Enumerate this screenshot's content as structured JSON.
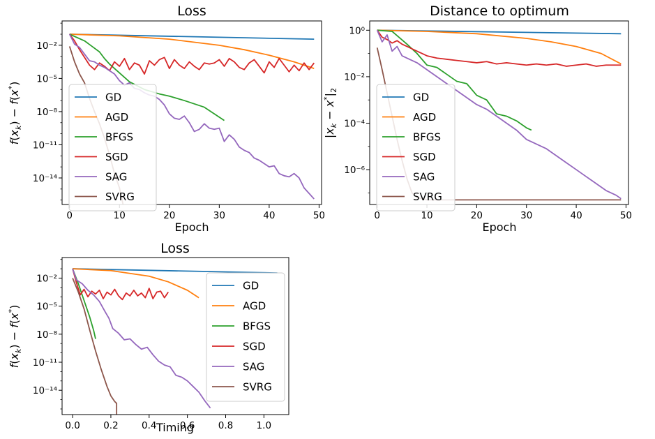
{
  "colors": {
    "GD": "#1f77b4",
    "AGD": "#ff7f0e",
    "BFGS": "#2ca02c",
    "SGD": "#d62728",
    "SAG": "#9467bd",
    "SVRG": "#8c564b"
  },
  "chart_data": [
    {
      "type": "line",
      "title": "Loss",
      "xlabel": "Epoch",
      "ylabel": "f(x_k) − f(x*)",
      "yscale": "log",
      "xlim": [
        -1.5,
        50.5
      ],
      "ylim_log10": [
        -16.4,
        0.2
      ],
      "xticks": [
        0,
        10,
        20,
        30,
        40,
        50
      ],
      "xtick_labels": [
        "0",
        "10",
        "20",
        "30",
        "40",
        "50"
      ],
      "yticks_log10": [
        -2,
        -5,
        -8,
        -11,
        -14
      ],
      "ytick_labels": [
        "10⁻²",
        "10⁻⁵",
        "10⁻⁸",
        "10⁻¹¹",
        "10⁻¹⁴"
      ],
      "legend_position": "lower-left",
      "series": [
        {
          "name": "GD",
          "x": [
            0,
            49
          ],
          "y_log10": [
            -1.0,
            -1.45
          ]
        },
        {
          "name": "AGD",
          "x": [
            0,
            10,
            20,
            30,
            35,
            40,
            45,
            49
          ],
          "y_log10": [
            -1.0,
            -1.15,
            -1.45,
            -2.0,
            -2.4,
            -2.9,
            -3.5,
            -4.1
          ]
        },
        {
          "name": "BFGS",
          "x": [
            0,
            3,
            6,
            7,
            8,
            10,
            12,
            15,
            18,
            20,
            23,
            27,
            30,
            31
          ],
          "y_log10": [
            -1.0,
            -1.6,
            -2.6,
            -3.2,
            -3.7,
            -4.5,
            -5.3,
            -6.0,
            -6.4,
            -6.6,
            -7.0,
            -7.6,
            -8.5,
            -8.8
          ]
        },
        {
          "name": "SGD",
          "x": [
            0,
            1,
            2,
            3,
            4,
            5,
            6,
            7,
            8,
            9,
            10,
            11,
            12,
            13,
            14,
            15,
            16,
            17,
            18,
            19,
            20,
            21,
            22,
            23,
            24,
            25,
            26,
            27,
            28,
            29,
            30,
            31,
            32,
            33,
            34,
            35,
            36,
            37,
            38,
            39,
            40,
            41,
            42,
            43,
            44,
            45,
            46,
            47,
            48,
            49
          ],
          "y_log10": [
            -1.0,
            -1.6,
            -2.4,
            -3.1,
            -3.8,
            -4.2,
            -3.6,
            -3.9,
            -4.3,
            -3.5,
            -3.9,
            -3.2,
            -4.2,
            -3.6,
            -3.8,
            -4.6,
            -3.4,
            -3.8,
            -3.3,
            -3.1,
            -4.1,
            -3.3,
            -3.8,
            -4.1,
            -3.5,
            -3.9,
            -4.2,
            -3.6,
            -3.7,
            -3.6,
            -3.3,
            -3.9,
            -3.2,
            -3.5,
            -4.0,
            -4.2,
            -3.6,
            -3.3,
            -3.9,
            -4.5,
            -3.5,
            -4.0,
            -3.2,
            -3.8,
            -4.4,
            -3.8,
            -4.3,
            -3.6,
            -4.2,
            -3.6
          ]
        },
        {
          "name": "SAG",
          "x": [
            0,
            1,
            2,
            3,
            4,
            5,
            6,
            7,
            8,
            9,
            10,
            11,
            12,
            13,
            14,
            15,
            16,
            17,
            18,
            19,
            20,
            21,
            22,
            23,
            24,
            25,
            26,
            27,
            28,
            29,
            30,
            31,
            32,
            33,
            34,
            35,
            36,
            37,
            38,
            39,
            40,
            41,
            42,
            43,
            44,
            45,
            46,
            47,
            48,
            49
          ],
          "y_log10": [
            -1.0,
            -1.9,
            -2.2,
            -2.8,
            -3.4,
            -3.5,
            -3.8,
            -4.0,
            -4.3,
            -4.6,
            -5.2,
            -5.6,
            -5.4,
            -5.9,
            -6.0,
            -6.3,
            -6.5,
            -6.6,
            -6.9,
            -7.4,
            -8.2,
            -8.6,
            -8.7,
            -8.4,
            -9.0,
            -9.8,
            -9.6,
            -9.1,
            -9.5,
            -9.6,
            -9.5,
            -10.7,
            -10.1,
            -10.5,
            -11.2,
            -11.5,
            -11.7,
            -12.2,
            -12.4,
            -12.7,
            -13.0,
            -12.9,
            -13.6,
            -13.8,
            -13.9,
            -13.6,
            -14.0,
            -14.9,
            -15.4,
            -15.9
          ]
        },
        {
          "name": "SVRG",
          "x": [
            0,
            1,
            2,
            3,
            4,
            5,
            6,
            7,
            8,
            9,
            10,
            11
          ],
          "y_log10": [
            -2.1,
            -3.5,
            -4.6,
            -5.4,
            -6.8,
            -8.0,
            -9.1,
            -10.4,
            -11.9,
            -13.6,
            -14.9,
            -17.0
          ]
        }
      ]
    },
    {
      "type": "line",
      "title": "Distance to optimum",
      "xlabel": "Epoch",
      "ylabel": "|x_k − x*|₂",
      "yscale": "log",
      "xlim": [
        -1.5,
        50.5
      ],
      "ylim_log10": [
        -7.5,
        0.4
      ],
      "xticks": [
        0,
        10,
        20,
        30,
        40,
        50
      ],
      "xtick_labels": [
        "0",
        "10",
        "20",
        "30",
        "40",
        "50"
      ],
      "yticks_log10": [
        0,
        -2,
        -4,
        -6
      ],
      "ytick_labels": [
        "10⁰",
        "10⁻²",
        "10⁻⁴",
        "10⁻⁶"
      ],
      "legend_position": "lower-left",
      "series": [
        {
          "name": "GD",
          "x": [
            0,
            49
          ],
          "y_log10": [
            0.0,
            -0.15
          ]
        },
        {
          "name": "AGD",
          "x": [
            0,
            10,
            20,
            30,
            35,
            40,
            45,
            49
          ],
          "y_log10": [
            0.0,
            -0.05,
            -0.15,
            -0.35,
            -0.5,
            -0.7,
            -1.0,
            -1.45
          ]
        },
        {
          "name": "BFGS",
          "x": [
            0,
            3,
            6,
            8,
            10,
            12,
            14,
            16,
            18,
            20,
            22,
            24,
            26,
            28,
            30,
            31
          ],
          "y_log10": [
            0.0,
            -0.05,
            -0.6,
            -1.0,
            -1.5,
            -1.6,
            -1.9,
            -2.2,
            -2.3,
            -2.8,
            -3.0,
            -3.6,
            -3.7,
            -3.9,
            -4.2,
            -4.3
          ]
        },
        {
          "name": "SGD",
          "x": [
            0,
            1,
            2,
            3,
            4,
            5,
            6,
            7,
            8,
            9,
            10,
            12,
            14,
            16,
            18,
            20,
            22,
            24,
            26,
            28,
            30,
            32,
            34,
            36,
            38,
            40,
            42,
            44,
            46,
            48,
            49
          ],
          "y_log10": [
            0.0,
            -0.3,
            -0.4,
            -0.55,
            -0.45,
            -0.6,
            -0.7,
            -0.8,
            -0.9,
            -1.0,
            -1.1,
            -1.2,
            -1.25,
            -1.3,
            -1.35,
            -1.4,
            -1.35,
            -1.45,
            -1.4,
            -1.45,
            -1.5,
            -1.45,
            -1.5,
            -1.45,
            -1.55,
            -1.5,
            -1.45,
            -1.55,
            -1.5,
            -1.5,
            -1.5
          ]
        },
        {
          "name": "SAG",
          "x": [
            0,
            1,
            2,
            3,
            4,
            5,
            6,
            8,
            10,
            12,
            14,
            16,
            18,
            20,
            22,
            24,
            26,
            28,
            30,
            32,
            34,
            36,
            38,
            40,
            42,
            44,
            46,
            48,
            49
          ],
          "y_log10": [
            0.0,
            -0.5,
            -0.2,
            -0.9,
            -0.7,
            -1.1,
            -1.2,
            -1.4,
            -1.7,
            -2.0,
            -2.3,
            -2.6,
            -2.9,
            -3.2,
            -3.4,
            -3.7,
            -4.0,
            -4.3,
            -4.7,
            -4.9,
            -5.1,
            -5.4,
            -5.7,
            -6.0,
            -6.3,
            -6.6,
            -6.9,
            -7.1,
            -7.25
          ]
        },
        {
          "name": "SVRG",
          "x": [
            0,
            1,
            2,
            3,
            4,
            5,
            6,
            7,
            8,
            9,
            10,
            11,
            12,
            20,
            30,
            40,
            49
          ],
          "y_log10": [
            -0.75,
            -1.7,
            -2.7,
            -3.7,
            -4.7,
            -5.6,
            -6.4,
            -7.0,
            -7.2,
            -7.25,
            -7.3,
            -7.3,
            -7.3,
            -7.3,
            -7.3,
            -7.3,
            -7.3
          ]
        }
      ]
    },
    {
      "type": "line",
      "title": "Loss",
      "xlabel": "Timing",
      "ylabel": "f(x_k) − f(x*)",
      "yscale": "log",
      "xlim": [
        -0.055,
        1.13
      ],
      "ylim_log10": [
        -16.6,
        0.2
      ],
      "xticks": [
        0.0,
        0.2,
        0.4,
        0.6,
        0.8,
        1.0
      ],
      "xtick_labels": [
        "0.0",
        "0.2",
        "0.4",
        "0.6",
        "0.8",
        "1.0"
      ],
      "yticks_log10": [
        -2,
        -5,
        -8,
        -11,
        -14
      ],
      "ytick_labels": [
        "10⁻²",
        "10⁻⁵",
        "10⁻⁸",
        "10⁻¹¹",
        "10⁻¹⁴"
      ],
      "legend_position": "right",
      "series": [
        {
          "name": "GD",
          "x": [
            0.0,
            1.07
          ],
          "y_log10": [
            -1.0,
            -1.45
          ]
        },
        {
          "name": "AGD",
          "x": [
            0.0,
            0.2,
            0.4,
            0.5,
            0.6,
            0.66
          ],
          "y_log10": [
            -1.0,
            -1.2,
            -1.8,
            -2.4,
            -3.3,
            -4.1
          ]
        },
        {
          "name": "BFGS",
          "x": [
            0.0,
            0.03,
            0.06,
            0.09,
            0.11,
            0.12
          ],
          "y_log10": [
            -1.0,
            -2.6,
            -4.4,
            -6.2,
            -7.6,
            -8.5
          ]
        },
        {
          "name": "SGD",
          "x": [
            0.0,
            0.02,
            0.04,
            0.06,
            0.08,
            0.1,
            0.12,
            0.14,
            0.16,
            0.18,
            0.2,
            0.22,
            0.24,
            0.26,
            0.28,
            0.3,
            0.32,
            0.34,
            0.36,
            0.38,
            0.4,
            0.42,
            0.44,
            0.46,
            0.48,
            0.5
          ],
          "y_log10": [
            -1.0,
            -2.5,
            -3.8,
            -3.2,
            -4.0,
            -3.4,
            -3.7,
            -3.3,
            -4.2,
            -3.5,
            -3.8,
            -3.2,
            -3.9,
            -4.3,
            -3.6,
            -3.9,
            -3.3,
            -3.9,
            -3.6,
            -4.1,
            -3.1,
            -4.2,
            -3.5,
            -3.4,
            -4.1,
            -3.5
          ]
        },
        {
          "name": "SAG",
          "x": [
            0.0,
            0.02,
            0.05,
            0.08,
            0.11,
            0.14,
            0.17,
            0.19,
            0.21,
            0.24,
            0.27,
            0.3,
            0.33,
            0.36,
            0.39,
            0.42,
            0.45,
            0.48,
            0.51,
            0.54,
            0.57,
            0.6,
            0.63,
            0.66,
            0.69,
            0.72
          ],
          "y_log10": [
            -1.0,
            -2.2,
            -2.6,
            -3.3,
            -3.8,
            -4.5,
            -5.6,
            -6.3,
            -7.4,
            -7.9,
            -8.6,
            -8.5,
            -9.1,
            -9.6,
            -9.4,
            -10.2,
            -10.9,
            -11.3,
            -11.5,
            -12.4,
            -12.6,
            -13.0,
            -13.6,
            -14.2,
            -15.1,
            -15.9
          ]
        },
        {
          "name": "SVRG",
          "x": [
            0.0,
            0.03,
            0.06,
            0.09,
            0.12,
            0.15,
            0.18,
            0.2,
            0.22,
            0.23,
            0.23
          ],
          "y_log10": [
            -2.0,
            -3.5,
            -5.3,
            -7.6,
            -9.8,
            -11.8,
            -13.6,
            -14.6,
            -15.2,
            -15.4,
            -17.5
          ]
        }
      ]
    }
  ]
}
